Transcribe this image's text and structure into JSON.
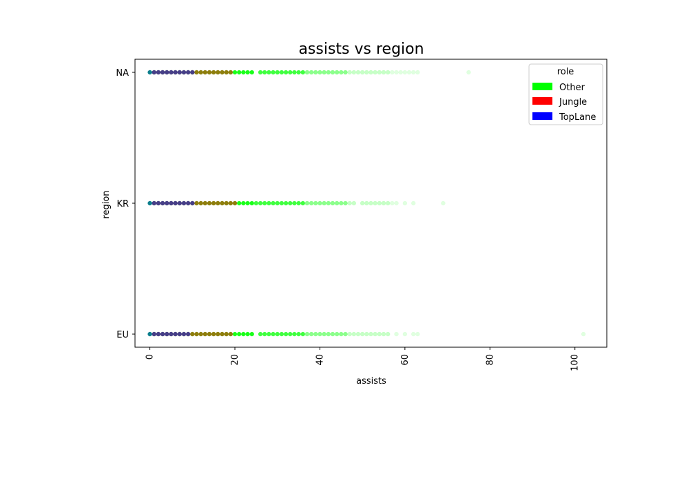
{
  "chart_data": {
    "type": "scatter",
    "title": "assists vs region",
    "xlabel": "assists",
    "ylabel": "region",
    "xlim": [
      -3.5,
      107.5
    ],
    "x_ticks": [
      0,
      20,
      40,
      60,
      80,
      100
    ],
    "x_tick_labels": [
      "0",
      "20",
      "40",
      "60",
      "80",
      "100"
    ],
    "categories": [
      "EU",
      "KR",
      "NA"
    ],
    "legend": {
      "title": "role",
      "placement": "top-right",
      "entries": [
        {
          "label": "Other",
          "color": "#00ff00"
        },
        {
          "label": "Jungle",
          "color": "#ff0000"
        },
        {
          "label": "TopLane",
          "color": "#0000ff"
        }
      ]
    },
    "series": [
      {
        "name": "Other",
        "color": "#00ff00",
        "points": {
          "NA": [
            0,
            1,
            2,
            3,
            4,
            5,
            6,
            7,
            8,
            9,
            10,
            11,
            12,
            13,
            14,
            15,
            16,
            17,
            18,
            19,
            20,
            21,
            22,
            23,
            24,
            26,
            27,
            28,
            29,
            30,
            31,
            32,
            33,
            34,
            35,
            36,
            37,
            38,
            39,
            40,
            41,
            42,
            43,
            44,
            45,
            46,
            47,
            48,
            49,
            50,
            51,
            52,
            53,
            54,
            55,
            56,
            57,
            58,
            59,
            60,
            61,
            62,
            63,
            75
          ],
          "KR": [
            0,
            1,
            2,
            3,
            4,
            5,
            6,
            7,
            8,
            9,
            10,
            11,
            12,
            13,
            14,
            15,
            16,
            17,
            18,
            19,
            20,
            21,
            22,
            23,
            24,
            25,
            26,
            27,
            28,
            29,
            30,
            31,
            32,
            33,
            34,
            35,
            36,
            37,
            38,
            39,
            40,
            41,
            42,
            43,
            44,
            45,
            46,
            47,
            48,
            50,
            51,
            52,
            53,
            54,
            55,
            56,
            57,
            58,
            60,
            62,
            69
          ],
          "EU": [
            0,
            1,
            2,
            3,
            4,
            5,
            6,
            7,
            8,
            9,
            10,
            11,
            12,
            13,
            14,
            15,
            16,
            17,
            18,
            19,
            20,
            21,
            22,
            23,
            24,
            26,
            27,
            28,
            29,
            30,
            31,
            32,
            33,
            34,
            35,
            36,
            37,
            38,
            39,
            40,
            41,
            42,
            43,
            44,
            45,
            46,
            47,
            48,
            49,
            50,
            51,
            52,
            53,
            54,
            55,
            56,
            58,
            60,
            62,
            63,
            102
          ]
        }
      },
      {
        "name": "Jungle",
        "color": "#ff0000",
        "points": {
          "NA": [
            1,
            2,
            3,
            4,
            5,
            6,
            7,
            8,
            9,
            10,
            11,
            12,
            13,
            14,
            15,
            16,
            17,
            18,
            19
          ],
          "KR": [
            1,
            2,
            3,
            4,
            5,
            6,
            7,
            8,
            9,
            10,
            11,
            12,
            13,
            14,
            15,
            16,
            17,
            18,
            19,
            20
          ],
          "EU": [
            1,
            2,
            3,
            4,
            5,
            6,
            7,
            8,
            9,
            10,
            11,
            12,
            13,
            14,
            15,
            16,
            17,
            18,
            19
          ]
        }
      },
      {
        "name": "TopLane",
        "color": "#0000ff",
        "points": {
          "NA": [
            0,
            1,
            2,
            3,
            4,
            5,
            6,
            7,
            8,
            9,
            10
          ],
          "KR": [
            0,
            1,
            2,
            3,
            4,
            5,
            6,
            7,
            8,
            9,
            10
          ],
          "EU": [
            0,
            1,
            2,
            3,
            4,
            5,
            6,
            7,
            8,
            9
          ]
        }
      }
    ]
  }
}
